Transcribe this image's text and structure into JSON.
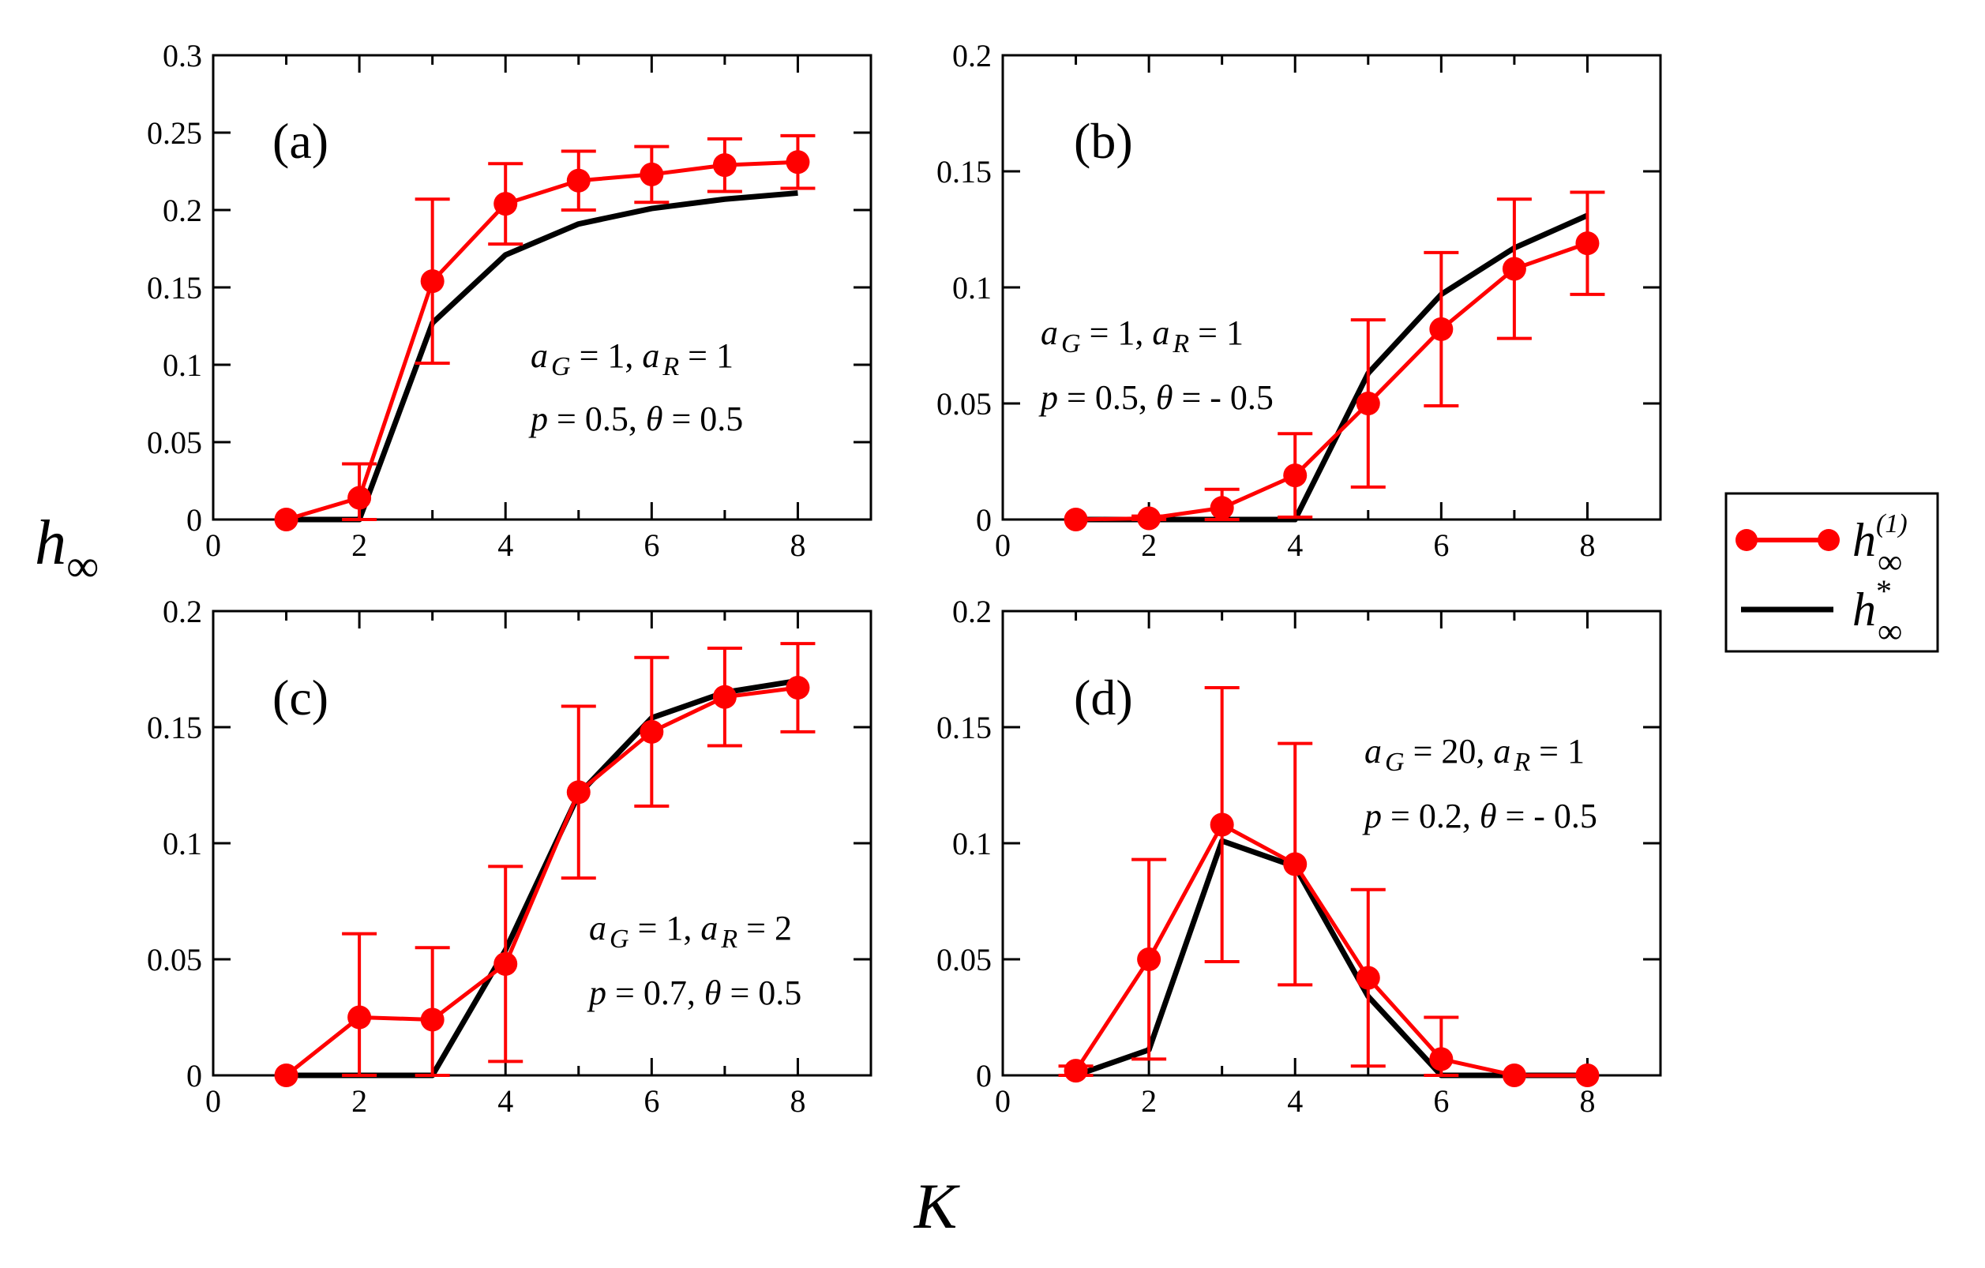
{
  "figure": {
    "ylabel_main": "h",
    "ylabel_sub": "∞",
    "xlabel": "K",
    "legend": [
      {
        "base": "h",
        "sub": "∞",
        "sup": "(1)",
        "color": "#ff0000",
        "style": "line-marker"
      },
      {
        "base": "h",
        "sub": "∞",
        "sup": "*",
        "color": "#000000",
        "style": "line"
      }
    ]
  },
  "chart_data": [
    {
      "type": "line",
      "panel_label": "(a)",
      "xlim": [
        0,
        9
      ],
      "ylim": [
        0,
        0.3
      ],
      "xticks": [
        0,
        2,
        4,
        6,
        8
      ],
      "yticks": [
        0,
        0.05,
        0.1,
        0.15,
        0.2,
        0.25,
        0.3
      ],
      "annotation": [
        {
          "parts": [
            {
              "t": "a",
              "i": true
            },
            {
              "t": "G",
              "i": true,
              "sub": true
            },
            {
              "t": " = 1,  "
            },
            {
              "t": "a",
              "i": true
            },
            {
              "t": "R",
              "i": true,
              "sub": true
            },
            {
              "t": " = 1"
            }
          ]
        },
        {
          "parts": [
            {
              "t": "p",
              "i": true
            },
            {
              "t": " = 0.5,  "
            },
            {
              "t": "θ",
              "i": true
            },
            {
              "t": " = 0.5"
            }
          ]
        }
      ],
      "series": [
        {
          "x": [
            1,
            2,
            3,
            4,
            5,
            6,
            7,
            8
          ],
          "y": [
            0.0,
            0.014,
            0.154,
            0.204,
            0.219,
            0.223,
            0.229,
            0.231
          ],
          "err": [
            0.0,
            0.022,
            0.053,
            0.026,
            0.019,
            0.018,
            0.017,
            0.017
          ],
          "color": "#ff0000"
        },
        {
          "x": [
            1,
            2,
            3,
            4,
            5,
            6,
            7,
            8
          ],
          "y": [
            0.0,
            0.0,
            0.127,
            0.171,
            0.191,
            0.201,
            0.207,
            0.211
          ],
          "color": "#000000"
        }
      ]
    },
    {
      "type": "line",
      "panel_label": "(b)",
      "xlim": [
        0,
        9
      ],
      "ylim": [
        0,
        0.2
      ],
      "xticks": [
        0,
        2,
        4,
        6,
        8
      ],
      "yticks": [
        0,
        0.05,
        0.1,
        0.15,
        0.2
      ],
      "annotation": [
        {
          "parts": [
            {
              "t": "a",
              "i": true
            },
            {
              "t": "G",
              "i": true,
              "sub": true
            },
            {
              "t": " = 1,  "
            },
            {
              "t": "a",
              "i": true
            },
            {
              "t": "R",
              "i": true,
              "sub": true
            },
            {
              "t": " = 1"
            }
          ]
        },
        {
          "parts": [
            {
              "t": "p",
              "i": true
            },
            {
              "t": " = 0.5,  "
            },
            {
              "t": "θ",
              "i": true
            },
            {
              "t": " = - 0.5"
            }
          ]
        }
      ],
      "series": [
        {
          "x": [
            1,
            2,
            3,
            4,
            5,
            6,
            7,
            8
          ],
          "y": [
            0.0,
            0.0005,
            0.005,
            0.019,
            0.05,
            0.082,
            0.108,
            0.119
          ],
          "err": [
            0.0,
            0.001,
            0.008,
            0.018,
            0.036,
            0.033,
            0.03,
            0.022
          ],
          "color": "#ff0000"
        },
        {
          "x": [
            1,
            2,
            3,
            4,
            5,
            6,
            7,
            8
          ],
          "y": [
            0.0,
            0.0,
            0.0,
            0.0,
            0.063,
            0.097,
            0.117,
            0.131
          ],
          "color": "#000000"
        }
      ]
    },
    {
      "type": "line",
      "panel_label": "(c)",
      "xlim": [
        0,
        9
      ],
      "ylim": [
        0,
        0.2
      ],
      "xticks": [
        0,
        2,
        4,
        6,
        8
      ],
      "yticks": [
        0,
        0.05,
        0.1,
        0.15,
        0.2
      ],
      "annotation": [
        {
          "parts": [
            {
              "t": "a",
              "i": true
            },
            {
              "t": "G",
              "i": true,
              "sub": true
            },
            {
              "t": " = 1,  "
            },
            {
              "t": "a",
              "i": true
            },
            {
              "t": "R",
              "i": true,
              "sub": true
            },
            {
              "t": " = 2"
            }
          ]
        },
        {
          "parts": [
            {
              "t": "p",
              "i": true
            },
            {
              "t": " = 0.7,  "
            },
            {
              "t": "θ",
              "i": true
            },
            {
              "t": " = 0.5"
            }
          ]
        }
      ],
      "series": [
        {
          "x": [
            1,
            2,
            3,
            4,
            5,
            6,
            7,
            8
          ],
          "y": [
            0.0,
            0.025,
            0.024,
            0.048,
            0.122,
            0.148,
            0.163,
            0.167
          ],
          "err": [
            0.0,
            0.036,
            0.031,
            0.042,
            0.037,
            0.032,
            0.021,
            0.019
          ],
          "color": "#ff0000"
        },
        {
          "x": [
            1,
            2,
            3,
            4,
            5,
            6,
            7,
            8
          ],
          "y": [
            0.0,
            0.0,
            0.0,
            0.054,
            0.121,
            0.154,
            0.165,
            0.17
          ],
          "color": "#000000"
        }
      ]
    },
    {
      "type": "line",
      "panel_label": "(d)",
      "xlim": [
        0,
        9
      ],
      "ylim": [
        0,
        0.2
      ],
      "xticks": [
        0,
        2,
        4,
        6,
        8
      ],
      "yticks": [
        0,
        0.05,
        0.1,
        0.15,
        0.2
      ],
      "annotation": [
        {
          "parts": [
            {
              "t": "a",
              "i": true
            },
            {
              "t": "G",
              "i": true,
              "sub": true
            },
            {
              "t": " = 20,  "
            },
            {
              "t": "a",
              "i": true
            },
            {
              "t": "R",
              "i": true,
              "sub": true
            },
            {
              "t": " = 1"
            }
          ]
        },
        {
          "parts": [
            {
              "t": "p",
              "i": true
            },
            {
              "t": " = 0.2,  "
            },
            {
              "t": "θ",
              "i": true
            },
            {
              "t": " = - 0.5"
            }
          ]
        }
      ],
      "series": [
        {
          "x": [
            1,
            2,
            3,
            4,
            5,
            6,
            7,
            8
          ],
          "y": [
            0.002,
            0.05,
            0.108,
            0.091,
            0.042,
            0.007,
            0.0,
            0.0
          ],
          "err": [
            0.002,
            0.043,
            0.059,
            0.052,
            0.038,
            0.018,
            0.0,
            0.0
          ],
          "color": "#ff0000"
        },
        {
          "x": [
            1,
            2,
            3,
            4,
            5,
            6,
            7,
            8
          ],
          "y": [
            0.0,
            0.011,
            0.101,
            0.09,
            0.034,
            0.0,
            0.0,
            0.0
          ],
          "color": "#000000"
        }
      ]
    }
  ]
}
